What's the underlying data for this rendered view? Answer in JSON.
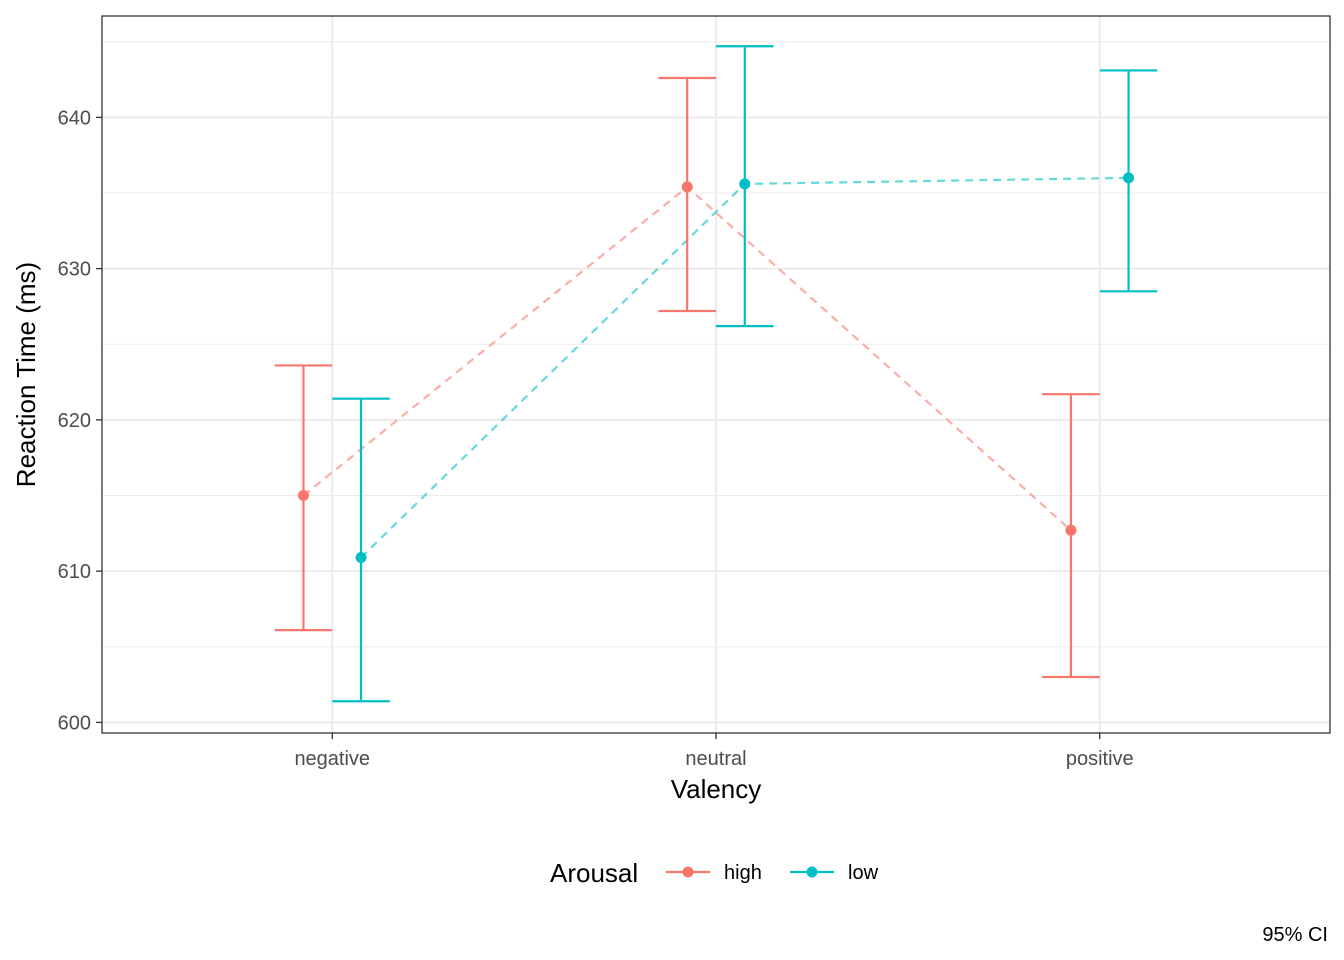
{
  "chart_data": {
    "type": "line",
    "title": "",
    "xlabel": "Valency",
    "ylabel": "Reaction Time (ms)",
    "categories": [
      "negative",
      "neutral",
      "positive"
    ],
    "ylim": [
      599.3,
      646.7
    ],
    "yticks": [
      600,
      610,
      620,
      630,
      640
    ],
    "grid": true,
    "legend": {
      "title": "Arousal",
      "position": "bottom"
    },
    "caption": "95% CI",
    "series": [
      {
        "name": "high",
        "color": "#F8766D",
        "values": [
          615.0,
          635.4,
          612.7
        ],
        "lower": [
          606.1,
          627.2,
          603.0
        ],
        "upper": [
          623.6,
          642.6,
          621.7
        ]
      },
      {
        "name": "low",
        "color": "#00BFC4",
        "values": [
          610.9,
          635.6,
          636.0
        ],
        "lower": [
          601.4,
          626.2,
          628.5
        ],
        "upper": [
          621.4,
          644.7,
          643.1
        ]
      }
    ]
  }
}
